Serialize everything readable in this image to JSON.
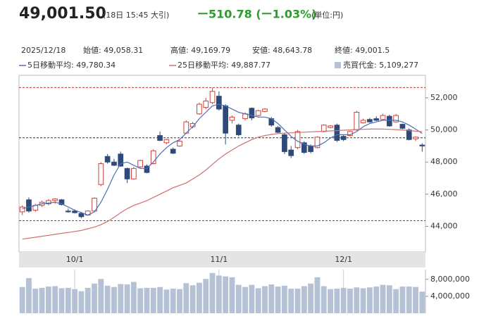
{
  "header": {
    "price": "49,001.50",
    "time": "(18日 15:45 大引)",
    "change": "ー510.78 (ー1.03%)",
    "unit": "(単位:円)",
    "date": "2025/12/18",
    "info": [
      "始値: 49,058.31",
      "高値: 49,169.79",
      "安値: 48,643.78",
      "終値: 49,001.5"
    ]
  },
  "chart_data": [
    {
      "type": "candlestick",
      "categories": [
        null,
        null,
        null,
        null,
        null,
        null,
        null,
        null,
        "10/1",
        null,
        null,
        null,
        null,
        null,
        null,
        null,
        null,
        null,
        null,
        null,
        null,
        null,
        null,
        null,
        null,
        null,
        null,
        null,
        null,
        null,
        "11/1",
        null,
        null,
        null,
        null,
        null,
        null,
        null,
        null,
        null,
        null,
        null,
        null,
        null,
        null,
        null,
        null,
        null,
        null,
        "12/1",
        null,
        null,
        null,
        null,
        null,
        null,
        null,
        null,
        null,
        null,
        null,
        null
      ],
      "open": [
        44900,
        45650,
        45000,
        45300,
        45400,
        45600,
        45650,
        44950,
        44950,
        44800,
        44700,
        44950,
        46600,
        48350,
        48000,
        48500,
        47600,
        46950,
        47700,
        47750,
        47900,
        49650,
        49200,
        48800,
        49000,
        49800,
        50200,
        51000,
        51400,
        51700,
        52100,
        51500,
        50600,
        50300,
        50700,
        51350,
        50900,
        51150,
        50700,
        50150,
        49700,
        48750,
        48900,
        49200,
        49000,
        48900,
        49900,
        50150,
        50300,
        49600,
        49650,
        50000,
        50450,
        50650,
        50700,
        50650,
        50850,
        50500,
        50350,
        50000,
        49450,
        49058.31
      ],
      "high": [
        45300,
        45800,
        45400,
        45600,
        45700,
        45750,
        45700,
        45100,
        45050,
        44900,
        45000,
        45800,
        48000,
        48500,
        48200,
        48650,
        47650,
        47700,
        48150,
        47850,
        48800,
        49900,
        49450,
        48900,
        49350,
        50600,
        50500,
        51700,
        52000,
        52636.87,
        52400,
        51600,
        50900,
        50400,
        51100,
        51400,
        51250,
        51350,
        50800,
        50250,
        49800,
        49000,
        50000,
        49300,
        49100,
        49600,
        50350,
        50300,
        50400,
        49700,
        49950,
        51200,
        50700,
        50750,
        50850,
        51000,
        50950,
        51000,
        50400,
        50100,
        49600,
        49169.79
      ],
      "low": [
        44700,
        44850,
        44900,
        45200,
        45300,
        45400,
        45300,
        44850,
        44800,
        44500,
        44650,
        44900,
        46500,
        47900,
        47750,
        47700,
        46700,
        46900,
        47650,
        47300,
        47850,
        49300,
        49100,
        48500,
        48950,
        49750,
        50100,
        50950,
        51300,
        51600,
        51200,
        49100,
        50400,
        49600,
        50600,
        50600,
        50850,
        51100,
        50200,
        49800,
        48500,
        48250,
        48800,
        48500,
        48550,
        48850,
        49850,
        50100,
        49250,
        49300,
        49600,
        49950,
        50400,
        50450,
        50550,
        50600,
        50200,
        50450,
        50050,
        49350,
        49300,
        48643.78
      ],
      "close": [
        45200,
        44950,
        45300,
        45500,
        45600,
        45700,
        45350,
        44900,
        44850,
        44600,
        44950,
        45750,
        47900,
        48000,
        47800,
        47750,
        46950,
        47600,
        48100,
        47350,
        48700,
        49350,
        49400,
        48550,
        49300,
        50500,
        50400,
        51600,
        51800,
        52400,
        51300,
        49800,
        50800,
        49700,
        51000,
        50750,
        51200,
        51300,
        50300,
        49850,
        48650,
        48400,
        49900,
        48600,
        48650,
        49550,
        50300,
        50250,
        49350,
        49400,
        49900,
        51100,
        50600,
        50500,
        50600,
        50900,
        50250,
        50900,
        50100,
        49400,
        49550,
        49001.5
      ],
      "up_color": "#d0403a",
      "down_color": "#2f4a7a",
      "series": [
        {
          "name": "5日移動平均: 49,780.34",
          "color": "#4a6fb5",
          "values": [
            45100,
            45200,
            45300,
            45400,
            45450,
            45500,
            45400,
            45200,
            45000,
            44850,
            44700,
            44900,
            45500,
            46300,
            47200,
            47900,
            48000,
            47800,
            47600,
            47600,
            48000,
            48500,
            48900,
            49200,
            49400,
            49800,
            50200,
            50700,
            51100,
            51500,
            51600,
            51500,
            51300,
            51100,
            51000,
            50900,
            50800,
            50800,
            50700,
            50400,
            50000,
            49600,
            49300,
            49100,
            49000,
            49000,
            49200,
            49500,
            49700,
            49700,
            49700,
            49900,
            50200,
            50400,
            50500,
            50600,
            50600,
            50600,
            50500,
            50300,
            50050,
            49780.34
          ]
        },
        {
          "name": "25日移動平均: 49,887.77",
          "color": "#d07070",
          "values": [
            43200,
            43260,
            43320,
            43380,
            43440,
            43500,
            43560,
            43620,
            43680,
            43740,
            43850,
            43950,
            44100,
            44300,
            44550,
            44850,
            45100,
            45300,
            45450,
            45600,
            45800,
            46000,
            46200,
            46400,
            46550,
            46700,
            46950,
            47200,
            47500,
            47850,
            48200,
            48500,
            48750,
            49000,
            49200,
            49400,
            49550,
            49650,
            49720,
            49770,
            49800,
            49820,
            49840,
            49860,
            49880,
            49900,
            49920,
            49940,
            49960,
            49980,
            50000,
            50020,
            50040,
            50050,
            50060,
            50050,
            50040,
            50020,
            50000,
            49960,
            49920,
            49887.77
          ]
        }
      ],
      "hlines": [
        {
          "value": 52636.87,
          "color": "#c0392b"
        },
        {
          "value": 49512.28,
          "color": "#333333"
        },
        {
          "value": 44350,
          "color": "#3b5b9a"
        }
      ],
      "ylim": [
        42400,
        53400
      ],
      "yticks": [
        {
          "value": 44000,
          "label": "44,000"
        },
        {
          "value": 46000,
          "label": "46,000"
        },
        {
          "value": 48000,
          "label": "48,000"
        },
        {
          "value": 50000,
          "label": "50,000"
        },
        {
          "value": 52000,
          "label": "52,000"
        }
      ]
    },
    {
      "type": "bar",
      "series": [
        {
          "name": "売買代金: 5,109,277",
          "color": "#b5c1d4",
          "values": [
            6200000,
            8300000,
            5800000,
            6000000,
            6300000,
            6400000,
            5900000,
            6000000,
            5700000,
            5200000,
            6000000,
            7000000,
            8100000,
            6500000,
            6200000,
            6900000,
            6800000,
            7400000,
            5900000,
            6000000,
            6000000,
            6200000,
            5600000,
            5800000,
            5700000,
            7100000,
            6600000,
            7200000,
            8100000,
            9500000,
            8900000,
            8700000,
            8500000,
            6700000,
            6200000,
            6700000,
            5900000,
            6400000,
            6800000,
            6300000,
            6500000,
            5800000,
            5800000,
            6400000,
            7000000,
            8500000,
            6400000,
            5700000,
            5800000,
            6000000,
            5800000,
            6100000,
            5900000,
            6100000,
            6300000,
            6700000,
            6600000,
            5700000,
            6300000,
            6300000,
            6200000,
            5109277
          ]
        }
      ],
      "ylim": [
        0,
        10300000
      ],
      "yticks": [
        {
          "value": 4000000,
          "label": "4,000,000"
        },
        {
          "value": 8000000,
          "label": "8,000,000"
        }
      ]
    }
  ]
}
